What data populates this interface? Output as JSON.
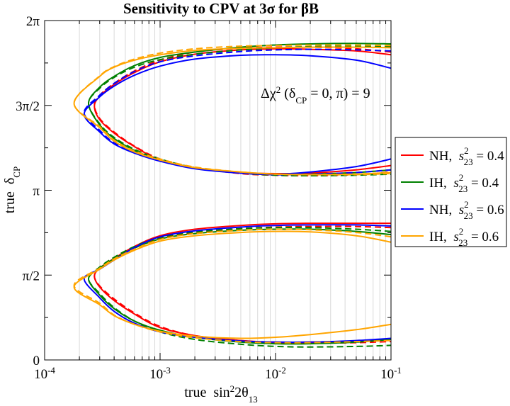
{
  "chart_data": {
    "type": "line",
    "title": "Sensitivity to CPV at 3σ for βB",
    "xlabel": "true  sin²2θ₁₃",
    "ylabel": "true  δ_CP",
    "xscale": "log",
    "xlim": [
      0.0001,
      0.1
    ],
    "ylim_rad": [
      0,
      6.2832
    ],
    "x_ticks": [
      {
        "base": "10",
        "exp": "-4"
      },
      {
        "base": "10",
        "exp": "-3"
      },
      {
        "base": "10",
        "exp": "-2"
      },
      {
        "base": "10",
        "exp": "-1"
      }
    ],
    "y_ticks": [
      "0",
      "π/2",
      "π",
      "3π/2",
      "2π"
    ],
    "y_tick_values": [
      0,
      1.5708,
      3.1416,
      4.7124,
      6.2832
    ],
    "grid": "vertical-minor",
    "annotation": "Δχ² (δ_CP = 0, π) = 9",
    "legend_position": "right-outside",
    "legend": [
      {
        "label": "NH,",
        "sym": "s",
        "sup": "2",
        "sub": "23",
        "value": "= 0.4",
        "color": "#ff0000"
      },
      {
        "label": "IH,",
        "sym": "s",
        "sup": "2",
        "sub": "23",
        "value": "= 0.4",
        "color": "#008000"
      },
      {
        "label": "NH,",
        "sym": "s",
        "sup": "2",
        "sub": "23",
        "value": "= 0.6",
        "color": "#0000ff"
      },
      {
        "label": "IH,",
        "sym": "s",
        "sup": "2",
        "sub": "23",
        "value": "= 0.6",
        "color": "#ffa500"
      }
    ],
    "series": [
      {
        "legend": 0,
        "color": "#ff0000",
        "dash": false,
        "x": [
          0.1,
          0.05,
          0.02,
          0.01,
          0.005,
          0.002,
          0.001,
          0.0006,
          0.0004,
          0.0003,
          0.00027,
          0.0003,
          0.0004,
          0.0006,
          0.001,
          0.002,
          0.005,
          0.01,
          0.02,
          0.05,
          0.1
        ],
        "y": [
          5.65,
          5.72,
          5.75,
          5.76,
          5.74,
          5.66,
          5.52,
          5.32,
          5.1,
          4.88,
          4.7,
          4.45,
          4.2,
          3.95,
          3.7,
          3.55,
          3.47,
          3.45,
          3.46,
          3.52,
          3.6
        ]
      },
      {
        "legend": 0,
        "color": "#ff0000",
        "dash": true,
        "x": [
          0.1,
          0.05,
          0.02,
          0.01,
          0.005,
          0.002,
          0.001,
          0.0006,
          0.0004,
          0.0003,
          0.00027,
          0.0003,
          0.0004,
          0.0006,
          0.001,
          0.002,
          0.005,
          0.01,
          0.02,
          0.05,
          0.1
        ],
        "y": [
          5.7,
          5.76,
          5.79,
          5.79,
          5.77,
          5.7,
          5.55,
          5.35,
          5.12,
          4.9,
          4.72,
          4.47,
          4.22,
          3.96,
          3.72,
          3.56,
          3.45,
          3.42,
          3.41,
          3.43,
          3.48
        ]
      },
      {
        "legend": 1,
        "color": "#008000",
        "dash": false,
        "x": [
          0.1,
          0.05,
          0.02,
          0.01,
          0.005,
          0.002,
          0.001,
          0.0006,
          0.0004,
          0.0003,
          0.00024,
          0.0003,
          0.0004,
          0.0006,
          0.001,
          0.002,
          0.005,
          0.01,
          0.02,
          0.05,
          0.1
        ],
        "y": [
          5.85,
          5.86,
          5.85,
          5.83,
          5.79,
          5.7,
          5.6,
          5.45,
          5.25,
          5.05,
          4.75,
          4.35,
          4.1,
          3.88,
          3.7,
          3.55,
          3.46,
          3.43,
          3.44,
          3.47,
          3.52
        ]
      },
      {
        "legend": 1,
        "color": "#008000",
        "dash": true,
        "x": [
          0.1,
          0.05,
          0.02,
          0.01,
          0.005,
          0.002,
          0.001,
          0.0006,
          0.0004,
          0.0003,
          0.00024,
          0.0003,
          0.0004,
          0.0006,
          0.001,
          0.002,
          0.005,
          0.01,
          0.02,
          0.05,
          0.1
        ],
        "y": [
          5.8,
          5.81,
          5.8,
          5.78,
          5.74,
          5.66,
          5.56,
          5.42,
          5.23,
          5.03,
          4.75,
          4.37,
          4.12,
          3.9,
          3.72,
          3.56,
          3.46,
          3.42,
          3.41,
          3.42,
          3.44
        ]
      },
      {
        "legend": 2,
        "color": "#0000ff",
        "dash": false,
        "x": [
          0.1,
          0.05,
          0.02,
          0.01,
          0.005,
          0.002,
          0.001,
          0.0006,
          0.0004,
          0.0003,
          0.00022,
          0.0003,
          0.0004,
          0.0006,
          0.001,
          0.002,
          0.005,
          0.01,
          0.02,
          0.05,
          0.1
        ],
        "y": [
          5.4,
          5.55,
          5.63,
          5.65,
          5.64,
          5.57,
          5.44,
          5.27,
          5.07,
          4.87,
          4.55,
          4.22,
          4.0,
          3.83,
          3.68,
          3.54,
          3.46,
          3.44,
          3.48,
          3.58,
          3.72
        ]
      },
      {
        "legend": 2,
        "color": "#0000ff",
        "dash": true,
        "x": [
          0.1,
          0.05,
          0.02,
          0.01,
          0.005,
          0.002,
          0.001,
          0.0006,
          0.0004,
          0.0003,
          0.00022,
          0.0003,
          0.0004,
          0.0006,
          0.001,
          0.002,
          0.005,
          0.01,
          0.02,
          0.05,
          0.1
        ],
        "y": [
          5.72,
          5.74,
          5.75,
          5.74,
          5.71,
          5.63,
          5.52,
          5.34,
          5.12,
          4.9,
          4.58,
          4.25,
          4.02,
          3.85,
          3.7,
          3.55,
          3.46,
          3.43,
          3.44,
          3.47,
          3.52
        ]
      },
      {
        "legend": 3,
        "color": "#ffa500",
        "dash": false,
        "x": [
          0.1,
          0.05,
          0.02,
          0.01,
          0.005,
          0.002,
          0.001,
          0.0006,
          0.0004,
          0.0003,
          0.00018,
          0.0003,
          0.0004,
          0.0006,
          0.001,
          0.002,
          0.005,
          0.01,
          0.02,
          0.05,
          0.1
        ],
        "y": [
          5.78,
          5.79,
          5.79,
          5.78,
          5.77,
          5.73,
          5.65,
          5.55,
          5.42,
          5.25,
          4.75,
          4.3,
          4.05,
          3.85,
          3.7,
          3.56,
          3.48,
          3.44,
          3.43,
          3.44,
          3.47
        ]
      },
      {
        "legend": 3,
        "color": "#ffa500",
        "dash": true,
        "x": [
          0.1,
          0.05,
          0.02,
          0.01,
          0.005,
          0.002,
          0.001,
          0.0006,
          0.0004,
          0.0003,
          0.00018,
          0.0003,
          0.0004,
          0.0006,
          0.001,
          0.002,
          0.005,
          0.01,
          0.02,
          0.05,
          0.1
        ],
        "y": [
          5.82,
          5.83,
          5.83,
          5.82,
          5.81,
          5.76,
          5.68,
          5.57,
          5.43,
          5.26,
          4.75,
          4.32,
          4.07,
          3.87,
          3.72,
          3.57,
          3.48,
          3.44,
          3.43,
          3.43,
          3.45
        ]
      },
      {
        "legend": 0,
        "color": "#ff0000",
        "dash": false,
        "x": [
          0.1,
          0.05,
          0.02,
          0.01,
          0.005,
          0.002,
          0.001,
          0.0006,
          0.0004,
          0.0003,
          0.00027,
          0.0003,
          0.0004,
          0.0006,
          0.001,
          0.002,
          0.005,
          0.01,
          0.02,
          0.05,
          0.1
        ],
        "y": [
          2.53,
          2.53,
          2.53,
          2.52,
          2.49,
          2.42,
          2.3,
          2.1,
          1.88,
          1.7,
          1.55,
          1.35,
          1.1,
          0.85,
          0.6,
          0.45,
          0.36,
          0.33,
          0.33,
          0.35,
          0.38
        ]
      },
      {
        "legend": 0,
        "color": "#ff0000",
        "dash": true,
        "x": [
          0.1,
          0.05,
          0.02,
          0.01,
          0.005,
          0.002,
          0.001,
          0.0006,
          0.0004,
          0.0003,
          0.00027,
          0.0003,
          0.0004,
          0.0006,
          0.001,
          0.002,
          0.005,
          0.01,
          0.02,
          0.05,
          0.1
        ],
        "y": [
          2.45,
          2.47,
          2.47,
          2.46,
          2.43,
          2.36,
          2.25,
          2.07,
          1.86,
          1.7,
          1.55,
          1.37,
          1.13,
          0.87,
          0.62,
          0.45,
          0.36,
          0.32,
          0.31,
          0.32,
          0.34
        ]
      },
      {
        "legend": 1,
        "color": "#008000",
        "dash": false,
        "x": [
          0.1,
          0.05,
          0.02,
          0.01,
          0.005,
          0.002,
          0.001,
          0.0006,
          0.0004,
          0.0003,
          0.00024,
          0.0003,
          0.0004,
          0.0006,
          0.001,
          0.002,
          0.005,
          0.01,
          0.02,
          0.05,
          0.1
        ],
        "y": [
          2.32,
          2.38,
          2.42,
          2.42,
          2.4,
          2.34,
          2.24,
          2.07,
          1.87,
          1.7,
          1.5,
          1.2,
          0.95,
          0.72,
          0.55,
          0.42,
          0.33,
          0.3,
          0.3,
          0.33,
          0.38
        ]
      },
      {
        "legend": 1,
        "color": "#008000",
        "dash": true,
        "x": [
          0.1,
          0.05,
          0.02,
          0.01,
          0.005,
          0.002,
          0.001,
          0.0006,
          0.0004,
          0.0003,
          0.00024,
          0.0003,
          0.0004,
          0.0006,
          0.001,
          0.002,
          0.005,
          0.01,
          0.02,
          0.05,
          0.1
        ],
        "y": [
          2.38,
          2.42,
          2.45,
          2.45,
          2.43,
          2.37,
          2.27,
          2.1,
          1.9,
          1.72,
          1.5,
          1.23,
          0.97,
          0.72,
          0.52,
          0.38,
          0.29,
          0.25,
          0.24,
          0.25,
          0.27
        ]
      },
      {
        "legend": 2,
        "color": "#0000ff",
        "dash": false,
        "x": [
          0.1,
          0.05,
          0.02,
          0.01,
          0.005,
          0.002,
          0.001,
          0.0006,
          0.0004,
          0.0003,
          0.00022,
          0.0003,
          0.0004,
          0.0006,
          0.001,
          0.002,
          0.005,
          0.01,
          0.02,
          0.05,
          0.1
        ],
        "y": [
          2.48,
          2.5,
          2.5,
          2.49,
          2.46,
          2.39,
          2.28,
          2.08,
          1.85,
          1.68,
          1.5,
          1.15,
          0.9,
          0.68,
          0.52,
          0.42,
          0.35,
          0.33,
          0.33,
          0.36,
          0.4
        ]
      },
      {
        "legend": 3,
        "color": "#ffa500",
        "dash": false,
        "x": [
          0.1,
          0.05,
          0.02,
          0.01,
          0.005,
          0.002,
          0.001,
          0.0006,
          0.0004,
          0.0003,
          0.00018,
          0.0003,
          0.0004,
          0.0006,
          0.001,
          0.002,
          0.005,
          0.01,
          0.02,
          0.05,
          0.1
        ],
        "y": [
          2.18,
          2.3,
          2.37,
          2.38,
          2.36,
          2.3,
          2.2,
          2.03,
          1.85,
          1.68,
          1.35,
          1.02,
          0.82,
          0.66,
          0.53,
          0.44,
          0.4,
          0.42,
          0.47,
          0.56,
          0.66
        ]
      },
      {
        "legend": 3,
        "color": "#ffa500",
        "dash": true,
        "x": [
          0.1,
          0.05,
          0.02,
          0.01,
          0.005,
          0.002,
          0.001,
          0.0006,
          0.0004,
          0.0003,
          0.00018,
          0.0003,
          0.0004,
          0.0006,
          0.001,
          0.002,
          0.005,
          0.01,
          0.02,
          0.05,
          0.1
        ],
        "y": [
          2.28,
          2.36,
          2.41,
          2.42,
          2.4,
          2.34,
          2.23,
          2.05,
          1.87,
          1.7,
          1.38,
          1.05,
          0.83,
          0.66,
          0.52,
          0.41,
          0.34,
          0.32,
          0.32,
          0.34,
          0.36
        ]
      }
    ]
  }
}
